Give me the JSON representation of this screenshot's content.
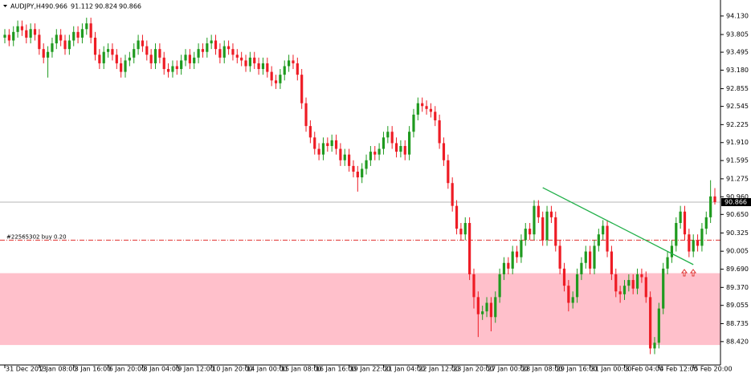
{
  "chart_data": {
    "type": "candlestick",
    "title": "AUDJPY,H4",
    "categories": [
      "31 Dec 2013",
      null,
      null,
      null,
      null,
      null,
      null,
      null,
      "2 Jan 08:00",
      null,
      null,
      null,
      null,
      null,
      null,
      null,
      "3 Jan 16:00",
      null,
      null,
      null,
      null,
      null,
      null,
      null,
      "6 Jan 20:00",
      null,
      null,
      null,
      null,
      null,
      null,
      null,
      "8 Jan 04:00",
      null,
      null,
      null,
      null,
      null,
      null,
      null,
      "9 Jan 12:00",
      null,
      null,
      null,
      null,
      null,
      null,
      null,
      "10 Jan 20:00",
      null,
      null,
      null,
      null,
      null,
      null,
      null,
      "14 Jan 00:00",
      null,
      null,
      null,
      null,
      null,
      null,
      null,
      "15 Jan 08:00",
      null,
      null,
      null,
      null,
      null,
      null,
      null,
      "16 Jan 16:00",
      null,
      null,
      null,
      null,
      null,
      null,
      null,
      "19 Jan 22:00",
      null,
      null,
      null,
      null,
      null,
      null,
      null,
      "21 Jan 04:00",
      null,
      null,
      null,
      null,
      null,
      null,
      null,
      "22 Jan 12:00",
      null,
      null,
      null,
      null,
      null,
      null,
      null,
      "23 Jan 20:00",
      null,
      null,
      null,
      null,
      null,
      null,
      null,
      "27 Jan 00:00",
      null,
      null,
      null,
      null,
      null,
      null,
      null,
      "28 Jan 08:00",
      null,
      null,
      null,
      null,
      null,
      null,
      null,
      "29 Jan 16:00",
      null,
      null,
      null,
      null,
      null,
      null,
      null,
      "31 Jan 00:00",
      null,
      null,
      null,
      null,
      null,
      null,
      null,
      "3 Feb 04:00",
      null,
      null,
      null,
      null,
      null,
      null,
      null,
      "4 Feb 12:00",
      null,
      null,
      null,
      null,
      null,
      null,
      null,
      "5 Feb 20:00",
      null,
      null,
      null,
      null,
      null
    ],
    "open": [
      93.75,
      93.8,
      93.7,
      93.85,
      93.95,
      93.88,
      93.75,
      93.9,
      93.8,
      93.55,
      93.4,
      93.5,
      93.65,
      93.8,
      93.7,
      93.55,
      93.7,
      93.85,
      93.75,
      93.9,
      94.0,
      93.75,
      93.45,
      93.3,
      93.5,
      93.55,
      93.45,
      93.3,
      93.15,
      93.35,
      93.4,
      93.55,
      93.7,
      93.6,
      93.45,
      93.3,
      93.55,
      93.4,
      93.2,
      93.15,
      93.25,
      93.2,
      93.35,
      93.45,
      93.3,
      93.4,
      93.55,
      93.5,
      93.65,
      93.7,
      93.55,
      93.4,
      93.6,
      93.55,
      93.45,
      93.4,
      93.35,
      93.25,
      93.4,
      93.3,
      93.2,
      93.3,
      93.15,
      93.0,
      92.95,
      93.1,
      93.25,
      93.35,
      93.3,
      93.1,
      92.6,
      92.2,
      92.0,
      91.8,
      91.7,
      91.9,
      91.85,
      91.95,
      91.8,
      91.6,
      91.7,
      91.5,
      91.4,
      91.3,
      91.45,
      91.6,
      91.75,
      91.7,
      91.8,
      92.0,
      92.1,
      91.9,
      91.75,
      91.85,
      91.7,
      92.1,
      92.4,
      92.6,
      92.55,
      92.5,
      92.45,
      92.3,
      91.9,
      91.6,
      91.2,
      90.8,
      90.4,
      90.3,
      90.5,
      89.6,
      89.2,
      88.9,
      88.95,
      89.1,
      88.85,
      89.2,
      89.6,
      89.8,
      89.7,
      90.0,
      89.9,
      90.2,
      90.4,
      90.3,
      90.8,
      90.6,
      90.2,
      90.7,
      90.6,
      90.1,
      89.7,
      89.4,
      89.1,
      89.2,
      89.6,
      89.8,
      90.0,
      89.7,
      90.1,
      90.3,
      90.45,
      90.0,
      89.6,
      89.3,
      89.25,
      89.4,
      89.5,
      89.35,
      89.6,
      89.55,
      89.2,
      88.3,
      88.4,
      89.0,
      89.7,
      89.9,
      90.1,
      90.5,
      90.7,
      90.3,
      90.0,
      90.2,
      90.1,
      90.4,
      90.6,
      90.966
    ],
    "high": [
      93.9,
      93.9,
      93.95,
      94.05,
      94.05,
      93.98,
      94.0,
      94.0,
      93.9,
      93.65,
      93.6,
      93.75,
      93.9,
      93.9,
      93.8,
      93.8,
      93.95,
      93.95,
      94.0,
      94.1,
      94.1,
      93.85,
      93.55,
      93.6,
      93.65,
      93.65,
      93.55,
      93.4,
      93.45,
      93.5,
      93.65,
      93.8,
      93.8,
      93.7,
      93.55,
      93.65,
      93.65,
      93.5,
      93.3,
      93.35,
      93.35,
      93.45,
      93.55,
      93.55,
      93.5,
      93.65,
      93.65,
      93.75,
      93.8,
      93.8,
      93.65,
      93.7,
      93.7,
      93.65,
      93.55,
      93.5,
      93.45,
      93.5,
      93.5,
      93.4,
      93.4,
      93.4,
      93.25,
      93.1,
      93.2,
      93.35,
      93.45,
      93.45,
      93.4,
      93.2,
      92.7,
      92.3,
      92.1,
      91.9,
      92.0,
      92.0,
      92.05,
      92.05,
      91.9,
      91.8,
      91.8,
      91.6,
      91.5,
      91.55,
      91.7,
      91.85,
      91.85,
      91.9,
      92.1,
      92.2,
      92.2,
      92.0,
      91.95,
      91.95,
      92.2,
      92.5,
      92.7,
      92.7,
      92.65,
      92.6,
      92.55,
      92.4,
      92.0,
      91.7,
      91.3,
      90.9,
      90.5,
      90.6,
      90.6,
      89.7,
      89.3,
      89.05,
      89.2,
      89.2,
      89.3,
      89.7,
      89.9,
      89.9,
      90.1,
      90.1,
      90.3,
      90.5,
      90.5,
      90.9,
      90.9,
      90.7,
      90.8,
      90.8,
      90.7,
      90.2,
      89.8,
      89.5,
      89.3,
      89.7,
      89.9,
      90.1,
      90.1,
      90.2,
      90.4,
      90.55,
      90.55,
      90.1,
      89.7,
      89.4,
      89.5,
      89.6,
      89.6,
      89.7,
      89.7,
      89.65,
      89.3,
      88.5,
      89.1,
      89.8,
      90.0,
      90.2,
      90.6,
      90.8,
      90.8,
      90.4,
      90.3,
      90.3,
      90.5,
      90.7,
      91.25,
      91.112
    ],
    "low": [
      93.65,
      93.6,
      93.6,
      93.75,
      93.78,
      93.65,
      93.65,
      93.7,
      93.45,
      93.3,
      93.05,
      93.4,
      93.55,
      93.6,
      93.45,
      93.45,
      93.6,
      93.65,
      93.65,
      93.8,
      93.65,
      93.35,
      93.2,
      93.2,
      93.4,
      93.35,
      93.2,
      93.05,
      93.05,
      93.25,
      93.3,
      93.45,
      93.5,
      93.35,
      93.2,
      93.2,
      93.3,
      93.1,
      93.05,
      93.05,
      93.1,
      93.1,
      93.25,
      93.2,
      93.2,
      93.3,
      93.4,
      93.4,
      93.55,
      93.45,
      93.3,
      93.3,
      93.45,
      93.35,
      93.3,
      93.25,
      93.15,
      93.15,
      93.2,
      93.1,
      93.1,
      93.05,
      92.9,
      92.85,
      92.85,
      93.0,
      93.15,
      93.2,
      93.0,
      92.5,
      92.1,
      91.9,
      91.7,
      91.6,
      91.6,
      91.75,
      91.75,
      91.7,
      91.5,
      91.5,
      91.4,
      91.3,
      91.05,
      91.2,
      91.35,
      91.5,
      91.6,
      91.6,
      91.7,
      91.9,
      91.8,
      91.65,
      91.65,
      91.6,
      91.6,
      92.0,
      92.3,
      92.45,
      92.4,
      92.35,
      92.2,
      91.8,
      91.5,
      91.1,
      90.7,
      90.3,
      90.2,
      90.2,
      89.5,
      89.0,
      88.5,
      88.8,
      88.85,
      88.6,
      88.75,
      89.1,
      89.5,
      89.6,
      89.6,
      89.8,
      89.8,
      90.1,
      90.2,
      90.2,
      90.5,
      90.1,
      90.1,
      90.5,
      90.0,
      89.6,
      89.3,
      88.95,
      89.0,
      89.1,
      89.5,
      89.7,
      89.6,
      89.6,
      90.0,
      90.2,
      89.9,
      89.5,
      89.2,
      89.1,
      89.15,
      89.3,
      89.25,
      89.25,
      89.45,
      89.1,
      88.2,
      88.2,
      88.3,
      88.9,
      89.6,
      89.8,
      90.0,
      90.4,
      90.2,
      89.9,
      89.9,
      90.0,
      90.0,
      90.3,
      90.5,
      90.824
    ],
    "close": [
      93.8,
      93.7,
      93.85,
      93.95,
      93.88,
      93.75,
      93.9,
      93.8,
      93.55,
      93.4,
      93.5,
      93.65,
      93.8,
      93.7,
      93.55,
      93.7,
      93.85,
      93.75,
      93.9,
      94.0,
      93.75,
      93.45,
      93.3,
      93.5,
      93.55,
      93.45,
      93.3,
      93.15,
      93.35,
      93.4,
      93.55,
      93.7,
      93.6,
      93.45,
      93.3,
      93.55,
      93.4,
      93.2,
      93.15,
      93.25,
      93.2,
      93.35,
      93.45,
      93.3,
      93.4,
      93.55,
      93.5,
      93.65,
      93.7,
      93.55,
      93.4,
      93.6,
      93.55,
      93.45,
      93.4,
      93.35,
      93.25,
      93.4,
      93.3,
      93.2,
      93.3,
      93.15,
      93.0,
      92.95,
      93.1,
      93.25,
      93.35,
      93.3,
      93.1,
      92.6,
      92.2,
      92.0,
      91.8,
      91.7,
      91.9,
      91.85,
      91.95,
      91.8,
      91.6,
      91.7,
      91.5,
      91.4,
      91.3,
      91.45,
      91.6,
      91.75,
      91.7,
      91.8,
      92.0,
      92.1,
      91.9,
      91.75,
      91.85,
      91.7,
      92.1,
      92.4,
      92.6,
      92.55,
      92.5,
      92.45,
      92.3,
      91.9,
      91.6,
      91.2,
      90.8,
      90.4,
      90.3,
      90.5,
      89.6,
      89.2,
      88.9,
      88.95,
      89.1,
      88.85,
      89.2,
      89.6,
      89.8,
      89.7,
      90.0,
      89.9,
      90.2,
      90.4,
      90.3,
      90.8,
      90.6,
      90.2,
      90.7,
      90.6,
      90.1,
      89.7,
      89.4,
      89.1,
      89.2,
      89.6,
      89.8,
      90.0,
      89.7,
      90.1,
      90.3,
      90.45,
      90.0,
      89.6,
      89.3,
      89.25,
      89.4,
      89.5,
      89.35,
      89.6,
      89.55,
      89.2,
      88.3,
      88.4,
      89.0,
      89.7,
      89.9,
      90.1,
      90.5,
      90.7,
      90.3,
      90.0,
      90.2,
      90.1,
      90.4,
      90.6,
      90.966,
      90.866
    ],
    "up_color": "#1f9a1f",
    "down_color": "#ee1c25",
    "ylim": [
      88.01,
      94.34
    ],
    "yticks": [
      {
        "value": 94.13,
        "label": "94.130"
      },
      93.805,
      93.495,
      {
        "value": 93.18,
        "label": "93.180"
      },
      92.855,
      92.545,
      92.225,
      {
        "value": 91.91,
        "label": "91.910"
      },
      91.595,
      91.275,
      {
        "value": 90.96,
        "label": "90.960"
      },
      {
        "value": 90.65,
        "label": "90.650"
      },
      90.325,
      90.005,
      {
        "value": 89.69,
        "label": "89.690"
      },
      {
        "value": 89.37,
        "label": "89.370"
      },
      89.055,
      88.735,
      {
        "value": 88.42,
        "label": "88.420"
      }
    ],
    "order_level": 90.2,
    "order_label": "#22565302 buy 0.20",
    "order_color": "#e0302f",
    "zone": [
      88.36,
      89.62
    ],
    "zone_color": "#ffc0cb",
    "trendline": {
      "x": [
        125,
        160
      ],
      "y": [
        91.12,
        89.77
      ],
      "color": "#22b04a"
    }
  }
}
